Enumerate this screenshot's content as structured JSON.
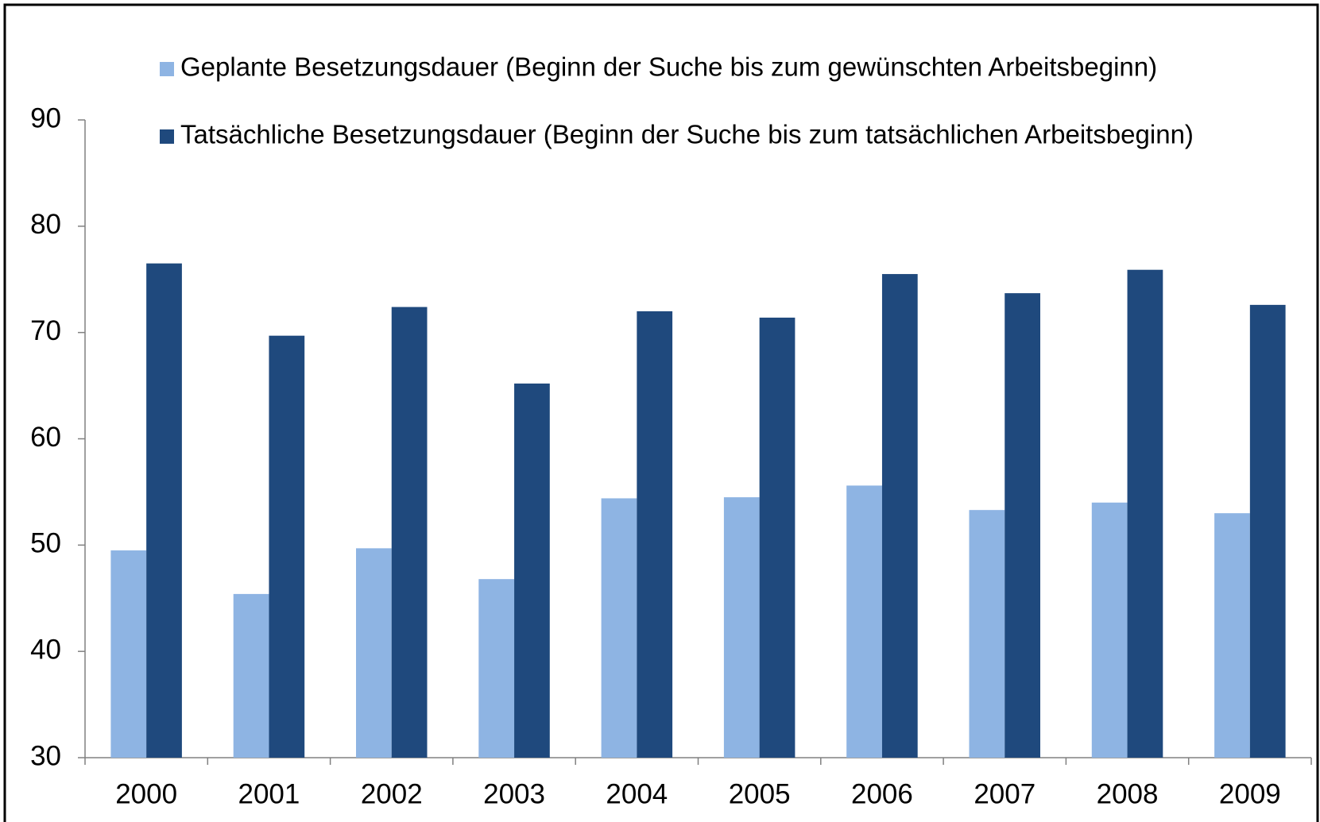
{
  "chart_data": {
    "type": "bar",
    "categories": [
      "2000",
      "2001",
      "2002",
      "2003",
      "2004",
      "2005",
      "2006",
      "2007",
      "2008",
      "2009"
    ],
    "series": [
      {
        "name": "Geplante Besetzungsdauer (Beginn der Suche bis zum gewünschten Arbeitsbeginn)",
        "color": "#8eb4e3",
        "values": [
          49.5,
          45.4,
          49.7,
          46.8,
          54.4,
          54.5,
          55.6,
          53.3,
          54.0,
          53.0
        ]
      },
      {
        "name": "Tatsächliche Besetzungsdauer (Beginn der Suche bis zum tatsächlichen Arbeitsbeginn)",
        "color": "#1f497d",
        "values": [
          76.5,
          69.7,
          72.4,
          65.2,
          72.0,
          71.4,
          75.5,
          73.7,
          75.9,
          72.6
        ]
      }
    ],
    "ylim": [
      30,
      90
    ],
    "yticks": [
      30,
      40,
      50,
      60,
      70,
      80,
      90
    ],
    "grid": false,
    "legend": "top"
  }
}
